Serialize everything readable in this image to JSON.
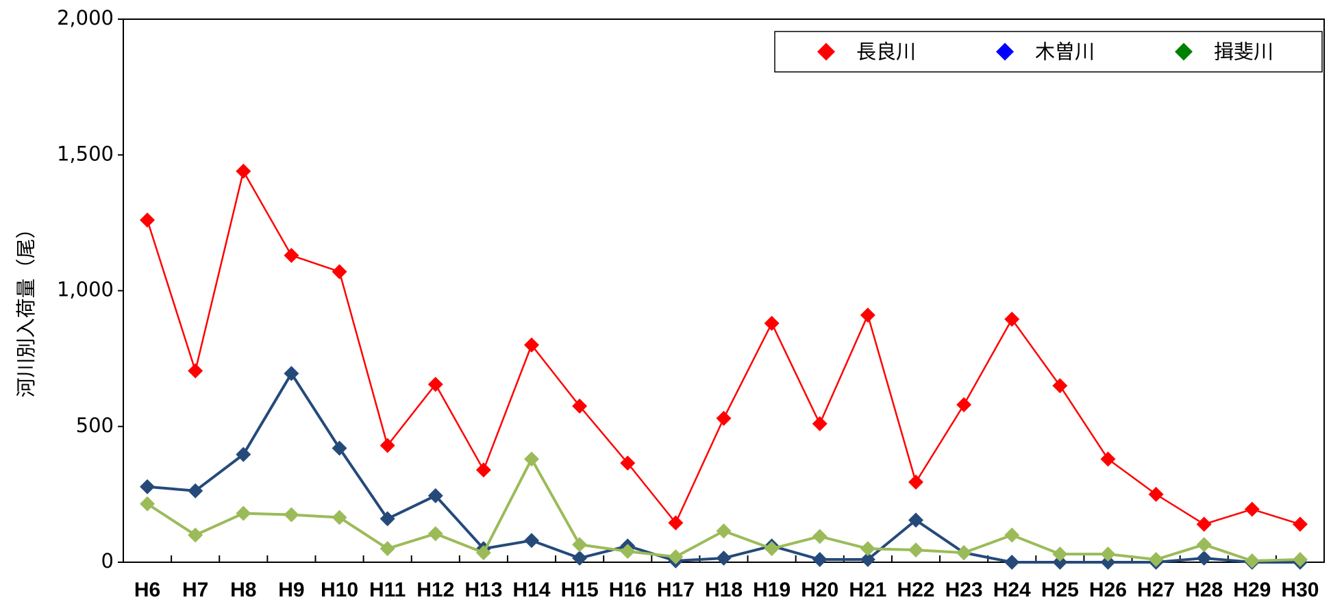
{
  "chart_data": {
    "type": "line",
    "y_label": "河川別入荷量（尾）",
    "categories": [
      "H6",
      "H7",
      "H8",
      "H9",
      "H10",
      "H11",
      "H12",
      "H13",
      "H14",
      "H15",
      "H16",
      "H17",
      "H18",
      "H19",
      "H20",
      "H21",
      "H22",
      "H23",
      "H24",
      "H25",
      "H26",
      "H27",
      "H28",
      "H29",
      "H30"
    ],
    "series": [
      {
        "name": "長良川",
        "color": "#ff0000",
        "legend_color": "#ff0000",
        "values": [
          1260,
          705,
          1440,
          1130,
          1070,
          430,
          655,
          340,
          800,
          575,
          365,
          145,
          530,
          880,
          510,
          910,
          295,
          580,
          895,
          650,
          380,
          250,
          140,
          195,
          140
        ]
      },
      {
        "name": "木曽川",
        "color": "#254a7a",
        "legend_color": "#0000ff",
        "values": [
          278,
          263,
          397,
          695,
          420,
          160,
          245,
          50,
          80,
          15,
          60,
          5,
          15,
          60,
          10,
          10,
          155,
          35,
          0,
          0,
          0,
          0,
          15,
          0,
          0
        ]
      },
      {
        "name": "揖斐川",
        "color": "#9bbb59",
        "legend_color": "#008000",
        "values": [
          215,
          100,
          180,
          175,
          165,
          50,
          105,
          35,
          380,
          65,
          40,
          20,
          115,
          50,
          95,
          50,
          45,
          35,
          100,
          30,
          30,
          10,
          65,
          5,
          10
        ]
      }
    ],
    "ylim": [
      0,
      2000
    ],
    "yticks": [
      0,
      500,
      {
        "value": 1000,
        "label": "1,000"
      },
      {
        "value": 1500,
        "label": "1,500"
      },
      {
        "value": 2000,
        "label": "2,000"
      }
    ],
    "grid": false,
    "legend": "top-right"
  }
}
